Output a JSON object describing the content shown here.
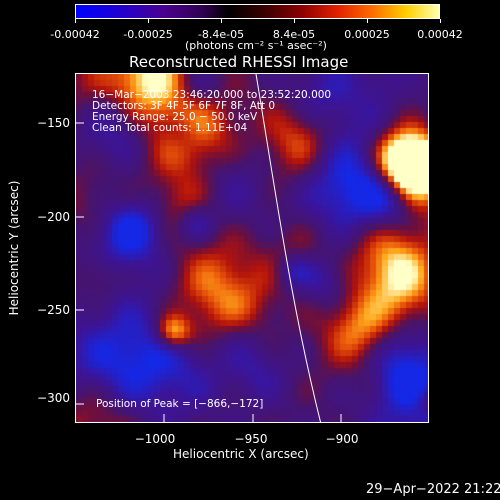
{
  "colorbar": {
    "ticks": [
      "-0.00042",
      "-0.00025",
      "-8.4e-05",
      "8.4e-05",
      "0.00025",
      "0.00042"
    ],
    "unit_label": "(photons cm⁻² s⁻¹ asec⁻²)"
  },
  "plot": {
    "title": "Reconstructed RHESSI Image",
    "x_axis_label": "Heliocentric X (arcsec)",
    "y_axis_label": "Heliocentric Y (arcsec)",
    "x_ticks": [
      "−1000",
      "−950",
      "−900"
    ],
    "y_ticks": [
      "−150",
      "−200",
      "−250",
      "−300"
    ],
    "info_lines": [
      "16−Mar−2003 23:46:20.000 to 23:52:20.000",
      "Detectors: 3F 4F 5F 6F 7F 8F, Att 0",
      "Energy Range: 25.0 − 50.0 keV",
      "Clean    Total counts: 1.11E+04"
    ],
    "peak_label": "Position of Peak = [−866,−172]"
  },
  "footer": {
    "timestamp": "29−Apr−2022 21:22"
  },
  "colors": {
    "background": "#000000",
    "limb_line": "#ffffff"
  }
}
